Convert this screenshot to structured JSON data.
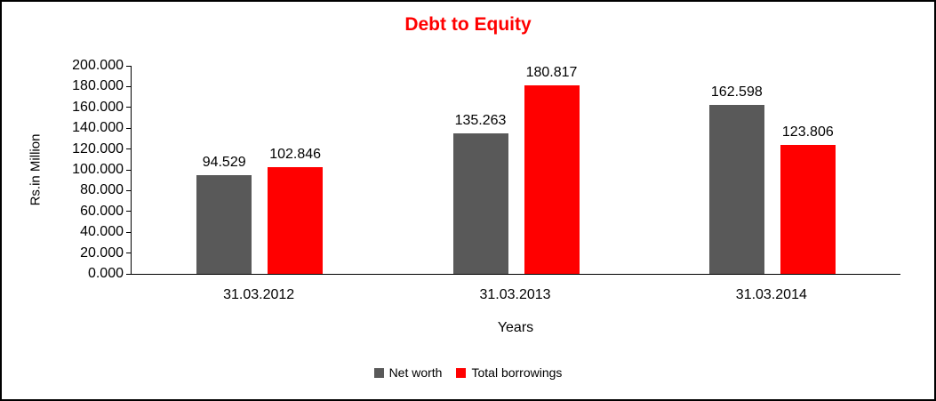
{
  "chart_data": {
    "type": "bar",
    "title": "Debt to Equity",
    "title_color": "#FF0000",
    "categories": [
      "31.03.2012",
      "31.03.2013",
      "31.03.2014"
    ],
    "series": [
      {
        "name": "Net worth",
        "color": "#595959",
        "values": [
          94.529,
          135.263,
          162.598
        ],
        "labels": [
          "94.529",
          "135.263",
          "162.598"
        ]
      },
      {
        "name": "Total borrowings",
        "color": "#FF0000",
        "values": [
          102.846,
          180.817,
          123.806
        ],
        "labels": [
          "102.846",
          "180.817",
          "123.806"
        ]
      }
    ],
    "xlabel": "Years",
    "ylabel": "Rs.in Million",
    "ylim": [
      0,
      200
    ],
    "yticks": [
      0,
      20,
      40,
      60,
      80,
      100,
      120,
      140,
      160,
      180,
      200
    ],
    "ytick_labels": [
      "0.000",
      "20.000",
      "40.000",
      "60.000",
      "80.000",
      "100.000",
      "120.000",
      "140.000",
      "160.000",
      "180.000",
      "200.000"
    ],
    "grid": false,
    "legend_position": "bottom"
  },
  "colors": {
    "frame_border": "#000000",
    "axis": "#000000",
    "text": "#000000"
  }
}
